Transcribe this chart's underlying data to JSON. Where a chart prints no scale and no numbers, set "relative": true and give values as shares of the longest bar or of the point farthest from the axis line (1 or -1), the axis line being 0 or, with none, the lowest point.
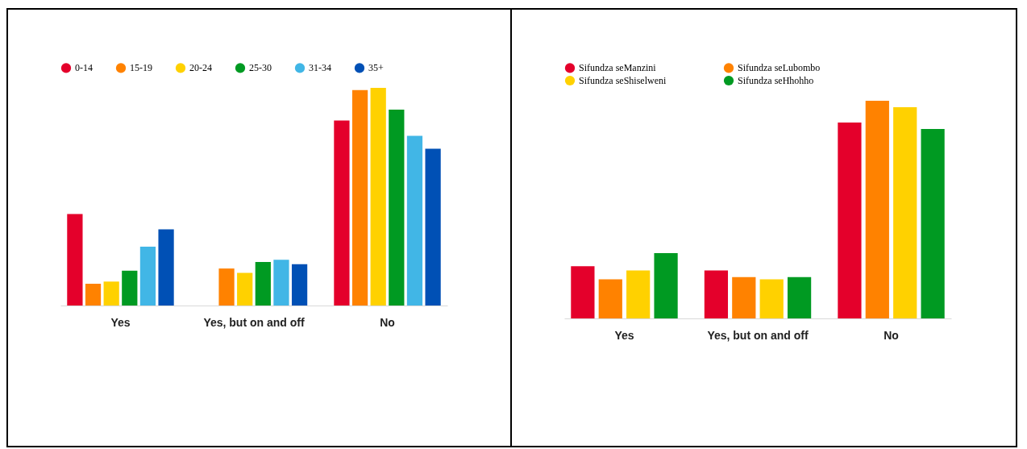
{
  "chart_data": [
    {
      "type": "bar",
      "relative": true,
      "legend": "top",
      "categories": [
        "Yes",
        "Yes, but on and off",
        "No"
      ],
      "series": [
        {
          "name": "0-14",
          "color": "#e4002b",
          "values": [
            0.42,
            null,
            0.85
          ]
        },
        {
          "name": "15-19",
          "color": "#ff8200",
          "values": [
            0.1,
            0.17,
            0.99
          ]
        },
        {
          "name": "20-24",
          "color": "#ffd100",
          "values": [
            0.11,
            0.15,
            1
          ]
        },
        {
          "name": "25-30",
          "color": "#009a22",
          "values": [
            0.16,
            0.2,
            0.9
          ]
        },
        {
          "name": "31-34",
          "color": "#41b6e6",
          "values": [
            0.27,
            0.21,
            0.78
          ]
        },
        {
          "name": "35+",
          "color": "#0050b5",
          "values": [
            0.35,
            0.19,
            0.72
          ]
        }
      ]
    },
    {
      "type": "bar",
      "relative": true,
      "legend": "top",
      "categories": [
        "Yes",
        "Yes, but on and off",
        "No"
      ],
      "series": [
        {
          "name": "Sifundza seManzini",
          "color": "#e4002b",
          "values": [
            0.24,
            0.22,
            0.9
          ]
        },
        {
          "name": "Sifundza seLubombo",
          "color": "#ff8200",
          "values": [
            0.18,
            0.19,
            1
          ]
        },
        {
          "name": "Sifundza seShiselweni",
          "color": "#ffd100",
          "values": [
            0.22,
            0.18,
            0.97
          ]
        },
        {
          "name": "Sifundza seHhohho",
          "color": "#009a22",
          "values": [
            0.3,
            0.19,
            0.87
          ]
        }
      ]
    }
  ]
}
